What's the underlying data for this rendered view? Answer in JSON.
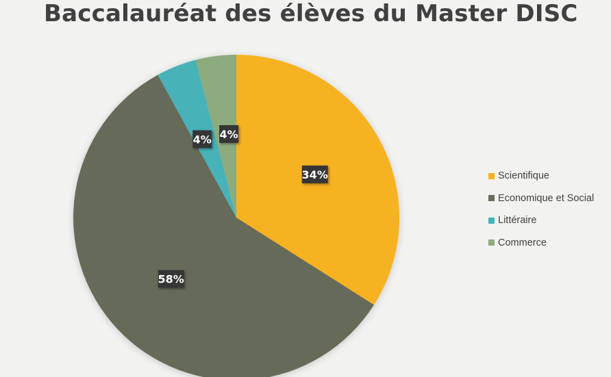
{
  "chart_data": {
    "type": "pie",
    "title": "Baccalauréat des élèves du Master DISC",
    "categories": [
      "Scientifique",
      "Economique et Social",
      "Littéraire",
      "Commerce"
    ],
    "values": [
      34,
      58,
      4,
      4
    ],
    "data_labels": [
      "34%",
      "58%",
      "4%",
      "4%"
    ],
    "colors": [
      "#f7b223",
      "#666a58",
      "#47b2b8",
      "#8eab7e"
    ],
    "legend_position": "right"
  }
}
